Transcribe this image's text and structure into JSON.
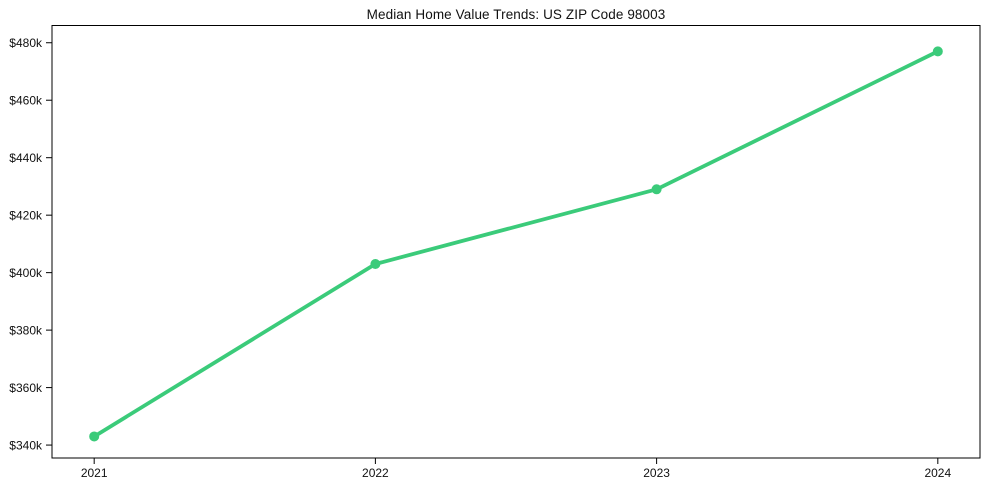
{
  "figure": {
    "background_color": "#ffffff"
  },
  "chart_data": {
    "type": "line",
    "title": "Median Home Value Trends: US ZIP Code 98003",
    "xlabel": "",
    "ylabel": "",
    "x": [
      2021,
      2022,
      2023,
      2024
    ],
    "x_tick_labels": [
      "2021",
      "2022",
      "2023",
      "2024"
    ],
    "series": [
      {
        "name": "median-home-value",
        "values_k": [
          343,
          403,
          429,
          477
        ],
        "color": "#3bcb7a",
        "line_width": 3.8,
        "marker": "circle",
        "marker_radius": 5
      }
    ],
    "y_tick_values_k": [
      340,
      360,
      380,
      400,
      420,
      440,
      460,
      480
    ],
    "y_tick_labels": [
      "$340k",
      "$360k",
      "$380k",
      "$400k",
      "$420k",
      "$440k",
      "$460k",
      "$480k"
    ],
    "ylim_k": [
      335.5,
      486
    ],
    "xlim": [
      2020.85,
      2024.15
    ],
    "grid": false,
    "legend": "none",
    "axis_color": "#000000",
    "text_color": "#111111"
  }
}
